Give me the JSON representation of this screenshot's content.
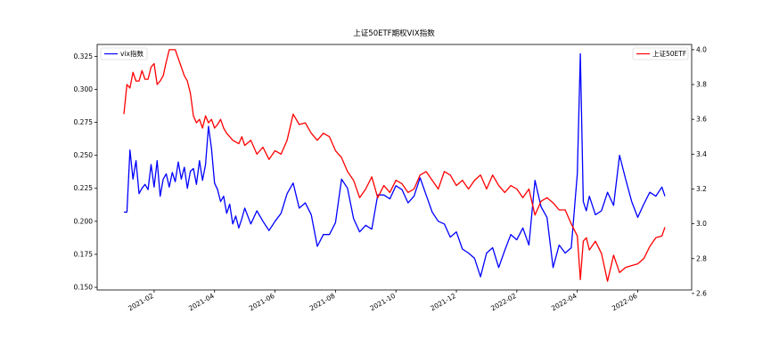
{
  "chart_data": {
    "type": "line",
    "title": "上证50ETF期权VIX指数",
    "x_ticks": [
      "2021-02",
      "2021-04",
      "2021-06",
      "2021-08",
      "2021-10",
      "2021-12",
      "2022-02",
      "2022-04",
      "2022-06"
    ],
    "x_range": [
      0,
      17.9
    ],
    "y_left": {
      "ticks": [
        "0.150",
        "0.175",
        "0.200",
        "0.225",
        "0.250",
        "0.275",
        "0.300",
        "0.325"
      ],
      "range": [
        0.148,
        0.334
      ]
    },
    "y_right": {
      "ticks": [
        "2.6",
        "2.8",
        "3.0",
        "3.2",
        "3.4",
        "3.6",
        "3.8",
        "4.0"
      ],
      "range": [
        2.62,
        4.03
      ]
    },
    "legend_left": {
      "label": "vix指数",
      "color": "#0000ff",
      "position": "upper left"
    },
    "legend_right": {
      "label": "上证50ETF",
      "color": "#ff0000",
      "position": "upper right"
    },
    "series": [
      {
        "name": "vix指数",
        "axis": "left",
        "color": "#0000ff",
        "x": [
          0.0,
          0.1,
          0.2,
          0.3,
          0.4,
          0.5,
          0.6,
          0.7,
          0.8,
          0.9,
          1.0,
          1.1,
          1.2,
          1.3,
          1.4,
          1.5,
          1.6,
          1.7,
          1.8,
          1.9,
          2.0,
          2.1,
          2.2,
          2.3,
          2.4,
          2.5,
          2.6,
          2.7,
          2.8,
          2.9,
          3.0,
          3.1,
          3.2,
          3.3,
          3.4,
          3.5,
          3.6,
          3.7,
          3.8,
          3.9,
          4.0,
          4.2,
          4.4,
          4.6,
          4.8,
          5.0,
          5.2,
          5.4,
          5.6,
          5.8,
          6.0,
          6.2,
          6.4,
          6.6,
          6.8,
          7.0,
          7.2,
          7.4,
          7.6,
          7.8,
          8.0,
          8.2,
          8.4,
          8.6,
          8.8,
          9.0,
          9.2,
          9.4,
          9.6,
          9.8,
          10.0,
          10.2,
          10.4,
          10.6,
          10.8,
          11.0,
          11.2,
          11.4,
          11.6,
          11.8,
          12.0,
          12.2,
          12.4,
          12.6,
          12.8,
          13.0,
          13.2,
          13.4,
          13.6,
          13.8,
          14.0,
          14.2,
          14.4,
          14.6,
          14.8,
          15.0,
          15.1,
          15.2,
          15.3,
          15.4,
          15.6,
          15.8,
          16.0,
          16.2,
          16.4,
          16.6,
          16.8,
          17.0,
          17.2,
          17.4,
          17.6,
          17.8,
          17.9
        ],
        "values": [
          0.207,
          0.207,
          0.254,
          0.232,
          0.246,
          0.221,
          0.225,
          0.228,
          0.224,
          0.243,
          0.226,
          0.246,
          0.219,
          0.232,
          0.236,
          0.226,
          0.237,
          0.23,
          0.245,
          0.232,
          0.241,
          0.225,
          0.238,
          0.24,
          0.228,
          0.246,
          0.231,
          0.243,
          0.272,
          0.255,
          0.229,
          0.224,
          0.215,
          0.219,
          0.206,
          0.213,
          0.198,
          0.204,
          0.195,
          0.202,
          0.21,
          0.198,
          0.208,
          0.2,
          0.193,
          0.2,
          0.206,
          0.221,
          0.229,
          0.21,
          0.214,
          0.205,
          0.181,
          0.19,
          0.19,
          0.199,
          0.232,
          0.225,
          0.202,
          0.192,
          0.197,
          0.194,
          0.22,
          0.22,
          0.217,
          0.227,
          0.224,
          0.214,
          0.219,
          0.233,
          0.22,
          0.207,
          0.2,
          0.198,
          0.188,
          0.192,
          0.179,
          0.176,
          0.172,
          0.158,
          0.176,
          0.18,
          0.165,
          0.178,
          0.19,
          0.186,
          0.195,
          0.182,
          0.231,
          0.211,
          0.203,
          0.165,
          0.182,
          0.176,
          0.18,
          0.236,
          0.327,
          0.215,
          0.208,
          0.219,
          0.205,
          0.208,
          0.222,
          0.212,
          0.25,
          0.232,
          0.215,
          0.203,
          0.213,
          0.222,
          0.219,
          0.226,
          0.219
        ]
      },
      {
        "name": "上证50ETF",
        "axis": "right",
        "color": "#ff0000",
        "x": [
          0.0,
          0.1,
          0.2,
          0.3,
          0.4,
          0.5,
          0.6,
          0.7,
          0.8,
          0.9,
          1.0,
          1.1,
          1.2,
          1.3,
          1.4,
          1.5,
          1.6,
          1.7,
          1.8,
          1.9,
          2.0,
          2.1,
          2.2,
          2.3,
          2.4,
          2.5,
          2.6,
          2.7,
          2.8,
          2.9,
          3.0,
          3.1,
          3.2,
          3.3,
          3.4,
          3.5,
          3.6,
          3.7,
          3.8,
          3.9,
          4.0,
          4.2,
          4.4,
          4.6,
          4.8,
          5.0,
          5.2,
          5.4,
          5.6,
          5.8,
          6.0,
          6.2,
          6.4,
          6.6,
          6.8,
          7.0,
          7.2,
          7.4,
          7.6,
          7.8,
          8.0,
          8.2,
          8.4,
          8.6,
          8.8,
          9.0,
          9.2,
          9.4,
          9.6,
          9.8,
          10.0,
          10.2,
          10.4,
          10.6,
          10.8,
          11.0,
          11.2,
          11.4,
          11.6,
          11.8,
          12.0,
          12.2,
          12.4,
          12.6,
          12.8,
          13.0,
          13.2,
          13.4,
          13.6,
          13.8,
          14.0,
          14.2,
          14.4,
          14.6,
          14.8,
          15.0,
          15.1,
          15.2,
          15.3,
          15.4,
          15.6,
          15.8,
          16.0,
          16.2,
          16.4,
          16.6,
          16.8,
          17.0,
          17.2,
          17.4,
          17.6,
          17.8,
          17.9
        ],
        "values": [
          3.63,
          3.8,
          3.78,
          3.87,
          3.82,
          3.82,
          3.88,
          3.83,
          3.83,
          3.9,
          3.92,
          3.8,
          3.82,
          3.85,
          3.93,
          4.0,
          4.0,
          4.0,
          3.95,
          3.9,
          3.85,
          3.82,
          3.75,
          3.62,
          3.58,
          3.6,
          3.55,
          3.62,
          3.58,
          3.6,
          3.55,
          3.57,
          3.6,
          3.55,
          3.52,
          3.5,
          3.48,
          3.47,
          3.46,
          3.5,
          3.45,
          3.48,
          3.4,
          3.44,
          3.37,
          3.42,
          3.4,
          3.48,
          3.63,
          3.57,
          3.58,
          3.52,
          3.48,
          3.52,
          3.5,
          3.42,
          3.38,
          3.3,
          3.25,
          3.15,
          3.2,
          3.27,
          3.15,
          3.22,
          3.18,
          3.25,
          3.23,
          3.18,
          3.2,
          3.28,
          3.3,
          3.25,
          3.2,
          3.3,
          3.28,
          3.22,
          3.25,
          3.2,
          3.25,
          3.28,
          3.2,
          3.28,
          3.22,
          3.18,
          3.22,
          3.2,
          3.15,
          3.2,
          3.05,
          3.13,
          3.15,
          3.12,
          3.08,
          3.08,
          3.0,
          2.93,
          2.68,
          2.9,
          2.92,
          2.85,
          2.9,
          2.83,
          2.67,
          2.82,
          2.72,
          2.75,
          2.76,
          2.77,
          2.8,
          2.87,
          2.92,
          2.93,
          2.98
        ]
      }
    ]
  }
}
